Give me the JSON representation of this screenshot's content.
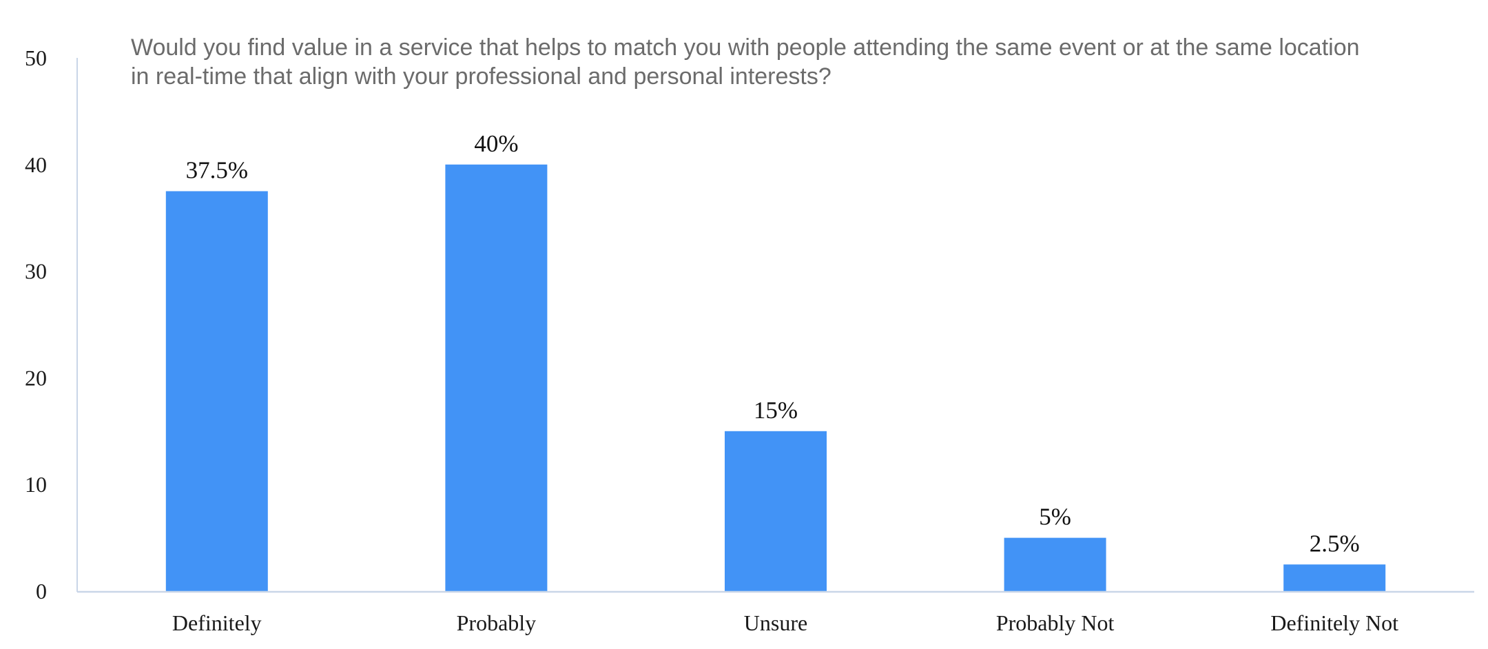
{
  "chart_data": {
    "type": "bar",
    "title_lines": [
      "Would you find value in a service that helps to match you with people attending the same event or at the same location",
      "in real-time that align with your professional and personal interests?"
    ],
    "categories": [
      "Definitely",
      "Probably",
      "Unsure",
      "Probably Not",
      "Definitely Not"
    ],
    "values": [
      37.5,
      40,
      15,
      5,
      2.5
    ],
    "data_labels": [
      "37.5%",
      "40%",
      "15%",
      "5%",
      "2.5%"
    ],
    "yticks": [
      "0",
      "10",
      "20",
      "30",
      "40",
      "50"
    ],
    "ylim": [
      0,
      50
    ],
    "grid": false,
    "legend": "none",
    "bar_color": "#4293f6",
    "axis_color": "#c9d6e8"
  }
}
